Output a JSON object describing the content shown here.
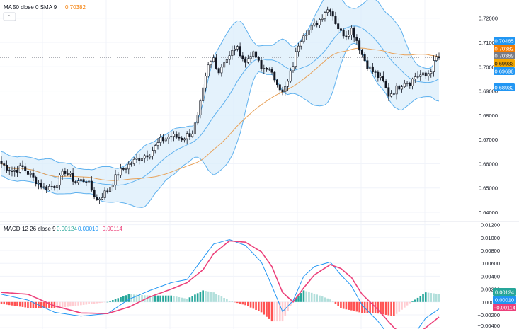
{
  "panes": {
    "price": {
      "legend": {
        "name": "MA",
        "params": "50 close 0 SMA 9",
        "value": "0.70382",
        "value_color": "#f57c00"
      },
      "badges": [
        {
          "label": "0.70465",
          "bg": "#2196f3",
          "fg": "#ffffff"
        },
        {
          "label": "0.70382",
          "bg": "#f57c00",
          "fg": "#ffffff"
        },
        {
          "label": "0.70369",
          "bg": "#787b86",
          "fg": "#ffffff"
        },
        {
          "label": "0.69933",
          "bg": "#f5a800",
          "fg": "#131722"
        },
        {
          "label": "0.69698",
          "bg": "#2196f3",
          "fg": "#ffffff"
        },
        {
          "label": "0.68932",
          "bg": "#2196f3",
          "fg": "#ffffff"
        }
      ]
    },
    "macd": {
      "legend": {
        "name": "MACD",
        "params": "12 26 close 9",
        "v1": "0.00124",
        "v2": "0.00010",
        "v3": "−0.00114"
      },
      "badges": [
        {
          "label": "0.00124",
          "bg": "#26a69a",
          "fg": "#ffffff"
        },
        {
          "label": "0.00010",
          "bg": "#2196f3",
          "fg": "#ffffff"
        },
        {
          "label": "−0.00114",
          "bg": "#ec407a",
          "fg": "#ffffff"
        }
      ]
    }
  },
  "chart_data": [
    {
      "type": "candlestick",
      "y_ticks": [
        "0.72000",
        "0.71000",
        "0.70000",
        "0.69000",
        "0.68000",
        "0.67000",
        "0.66000",
        "0.65000",
        "0.64000"
      ],
      "ylim": [
        0.6365,
        0.7275
      ],
      "colors": {
        "up": "#ffffff",
        "down": "#131722",
        "bb_band": "#5fb1ee",
        "bb_fill": "#dbeefb",
        "ma": "#e8a25a",
        "last_price_line": "#9598a1"
      },
      "ohlc_keyframes": [
        [
          0,
          0.66
        ],
        [
          4,
          0.657
        ],
        [
          8,
          0.6585
        ],
        [
          12,
          0.654
        ],
        [
          16,
          0.65
        ],
        [
          20,
          0.651
        ],
        [
          24,
          0.657
        ],
        [
          28,
          0.6525
        ],
        [
          32,
          0.6535
        ],
        [
          36,
          0.645
        ],
        [
          40,
          0.649
        ],
        [
          44,
          0.656
        ],
        [
          48,
          0.6595
        ],
        [
          52,
          0.6625
        ],
        [
          56,
          0.6645
        ],
        [
          60,
          0.6695
        ],
        [
          64,
          0.6715
        ],
        [
          68,
          0.6705
        ],
        [
          72,
          0.673
        ],
        [
          74,
          0.679
        ],
        [
          76,
          0.69
        ],
        [
          78,
          0.7
        ],
        [
          80,
          0.7035
        ],
        [
          82,
          0.698
        ],
        [
          84,
          0.7025
        ],
        [
          86,
          0.704
        ],
        [
          88,
          0.708
        ],
        [
          90,
          0.706
        ],
        [
          92,
          0.7015
        ],
        [
          94,
          0.7055
        ],
        [
          96,
          0.704
        ],
        [
          98,
          0.699
        ],
        [
          100,
          0.7
        ],
        [
          102,
          0.6965
        ],
        [
          104,
          0.694
        ],
        [
          106,
          0.689
        ],
        [
          108,
          0.6935
        ],
        [
          110,
          0.701
        ],
        [
          112,
          0.7095
        ],
        [
          114,
          0.714
        ],
        [
          116,
          0.715
        ],
        [
          118,
          0.717
        ],
        [
          120,
          0.7195
        ],
        [
          122,
          0.723
        ],
        [
          124,
          0.724
        ],
        [
          126,
          0.7185
        ],
        [
          128,
          0.714
        ],
        [
          130,
          0.7135
        ],
        [
          132,
          0.7155
        ],
        [
          134,
          0.711
        ],
        [
          136,
          0.705
        ],
        [
          138,
          0.7005
        ],
        [
          140,
          0.698
        ],
        [
          142,
          0.696
        ],
        [
          144,
          0.6935
        ],
        [
          146,
          0.6885
        ],
        [
          148,
          0.69
        ],
        [
          150,
          0.692
        ],
        [
          152,
          0.694
        ],
        [
          154,
          0.6935
        ],
        [
          156,
          0.696
        ],
        [
          158,
          0.6965
        ],
        [
          160,
          0.696
        ],
        [
          162,
          0.699
        ],
        [
          164,
          0.7037
        ]
      ],
      "price_y_ticks_note": "",
      "macd_y_ticks": [
        "0.01200",
        "0.01000",
        "0.00800",
        "0.00600",
        "0.00400",
        "0.00200",
        "0.00000",
        "−0.00200",
        "−0.00400"
      ],
      "macd_ylim": [
        -0.0042,
        0.0124
      ],
      "macd_keyframes": [
        [
          0,
          0.0012
        ],
        [
          10,
          0.0003
        ],
        [
          20,
          -0.0016
        ],
        [
          30,
          -0.0022
        ],
        [
          40,
          -0.0018
        ],
        [
          48,
          0.0004
        ],
        [
          56,
          0.0018
        ],
        [
          64,
          0.003
        ],
        [
          70,
          0.0035
        ],
        [
          76,
          0.0068
        ],
        [
          80,
          0.009
        ],
        [
          86,
          0.0097
        ],
        [
          92,
          0.0088
        ],
        [
          98,
          0.0062
        ],
        [
          102,
          0.0025
        ],
        [
          106,
          -0.0015
        ],
        [
          110,
          0.0002
        ],
        [
          114,
          0.004
        ],
        [
          118,
          0.0055
        ],
        [
          124,
          0.0062
        ],
        [
          128,
          0.0042
        ],
        [
          132,
          0.0025
        ],
        [
          136,
          -0.0005
        ],
        [
          142,
          -0.003
        ],
        [
          148,
          -0.0062
        ],
        [
          154,
          -0.006
        ],
        [
          160,
          -0.0025
        ],
        [
          166,
          -0.0008
        ]
      ],
      "signal_keyframes": [
        [
          0,
          0.0015
        ],
        [
          10,
          0.0012
        ],
        [
          20,
          -0.0006
        ],
        [
          30,
          -0.0017
        ],
        [
          40,
          -0.0018
        ],
        [
          48,
          -0.0008
        ],
        [
          56,
          0.0008
        ],
        [
          64,
          0.002
        ],
        [
          70,
          0.003
        ],
        [
          76,
          0.005
        ],
        [
          80,
          0.0075
        ],
        [
          86,
          0.0095
        ],
        [
          92,
          0.0093
        ],
        [
          98,
          0.0078
        ],
        [
          102,
          0.0055
        ],
        [
          106,
          0.0015
        ],
        [
          110,
          0.0
        ],
        [
          114,
          0.0022
        ],
        [
          118,
          0.0042
        ],
        [
          124,
          0.0058
        ],
        [
          128,
          0.0052
        ],
        [
          132,
          0.0038
        ],
        [
          136,
          0.0012
        ],
        [
          142,
          -0.0012
        ],
        [
          148,
          -0.004
        ],
        [
          154,
          -0.0058
        ],
        [
          160,
          -0.004
        ],
        [
          166,
          -0.002
        ]
      ],
      "macd_colors": {
        "macd": "#2196f3",
        "signal": "#ec407a",
        "hist_up_strong": "#26a69a",
        "hist_up_weak": "#b2dfdb",
        "hist_down_strong": "#ff5252",
        "hist_down_weak": "#ffcdd2"
      }
    }
  ]
}
